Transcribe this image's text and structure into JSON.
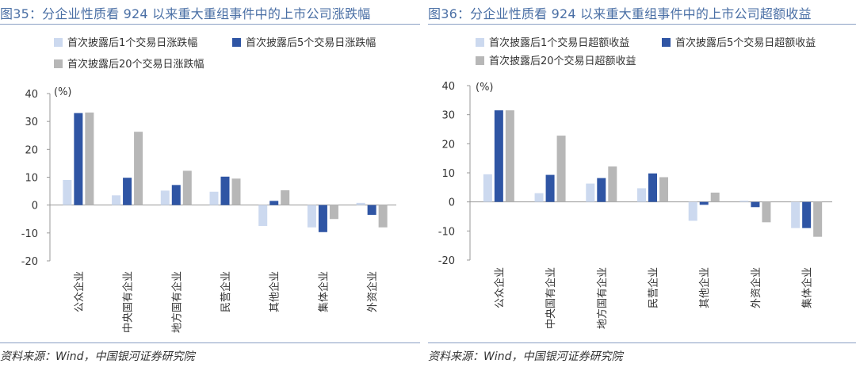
{
  "charts": [
    {
      "figure_title": "图35：分企业性质看 924 以来重大重组事件中的上市公司涨跌幅",
      "source": "资料来源：Wind，中国银河证券研究院",
      "chart_data": {
        "type": "bar",
        "title": "图35：分企业性质看 924 以来重大重组事件中的上市公司涨跌幅",
        "ylabel": "(%)",
        "ylim": [
          -20,
          40
        ],
        "yticks": [
          40,
          30,
          20,
          10,
          0,
          -10,
          -20
        ],
        "categories": [
          "公众企业",
          "中央国有企业",
          "地方国有企业",
          "民营企业",
          "其他企业",
          "集体企业",
          "外资企业"
        ],
        "series": [
          {
            "name": "首次披露后1个交易日涨跌幅",
            "color": "#ccd9ef",
            "values": [
              9,
              3.5,
              5.2,
              4.8,
              -7.5,
              -8,
              0.8
            ]
          },
          {
            "name": "首次披露后5个交易日涨跌幅",
            "color": "#2f55a4",
            "values": [
              33,
              9.8,
              7.2,
              10.2,
              1.5,
              -9.7,
              -3.5
            ]
          },
          {
            "name": "首次披露后20个交易日涨跌幅",
            "color": "#b7b7b7",
            "values": [
              33.2,
              26.3,
              12.3,
              9.5,
              5.3,
              -5,
              -8
            ]
          }
        ]
      }
    },
    {
      "figure_title": "图36：分企业性质看 924 以来重大重组事件中的上市公司超额收益",
      "source": "资料来源：Wind，中国银河证券研究院",
      "chart_data": {
        "type": "bar",
        "title": "图36：分企业性质看 924 以来重大重组事件中的上市公司超额收益",
        "ylabel": "(%)",
        "ylim": [
          -20,
          40
        ],
        "yticks": [
          40,
          30,
          20,
          10,
          0,
          -10,
          -20
        ],
        "categories": [
          "公众企业",
          "中央国有企业",
          "地方国有企业",
          "民营企业",
          "其他企业",
          "外资企业",
          "集体企业"
        ],
        "series": [
          {
            "name": "首次披露后1个交易日超额收益",
            "color": "#ccd9ef",
            "values": [
              9.5,
              3,
              6.3,
              4.7,
              -6.5,
              0.4,
              -9
            ]
          },
          {
            "name": "首次披露后5个交易日超额收益",
            "color": "#2f55a4",
            "values": [
              31.5,
              9.3,
              8.2,
              9.8,
              -1,
              -1.8,
              -9
            ]
          },
          {
            "name": "首次披露后20个交易日超额收益",
            "color": "#b7b7b7",
            "values": [
              31.5,
              22.8,
              12.2,
              8.5,
              3.2,
              -7,
              -12
            ]
          }
        ]
      }
    }
  ]
}
